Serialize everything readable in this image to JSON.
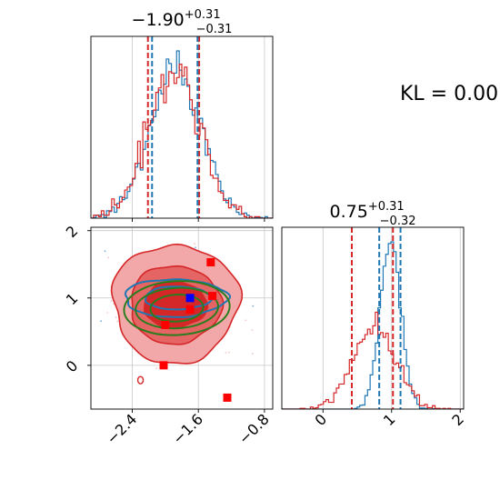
{
  "kl_text": "KL = 0.00",
  "colors": {
    "red": "#d62728",
    "blue": "#1f77b4",
    "green": "#2a7d1e",
    "marker_red": "#ff0000",
    "marker_blue": "#0000ff",
    "grid": "#c8c8c8"
  },
  "chart_data": [
    {
      "panel": "top-left",
      "type": "histogram",
      "title_main": "−1.90",
      "title_sup": "+0.31",
      "title_sub": "−0.31",
      "xlim": [
        -2.9,
        -0.7
      ],
      "xgrid": [
        -2.4,
        -1.6,
        -0.8
      ],
      "quantiles": {
        "red": [
          -2.21,
          -1.59
        ],
        "blue": [
          -2.16,
          -1.61
        ]
      }
    },
    {
      "panel": "bottom-right",
      "type": "histogram",
      "title_main": "0.75",
      "title_sup": "+0.31",
      "title_sub": "−0.32",
      "xlim": [
        -0.6,
        2.05
      ],
      "xticks": [
        "0",
        "1",
        "2"
      ],
      "xtick_values": [
        0,
        1,
        2
      ],
      "quantiles": {
        "red": [
          0.42,
          1.02
        ],
        "blue": [
          0.82,
          1.13
        ]
      }
    },
    {
      "panel": "bottom-left",
      "type": "contour",
      "xlim": [
        -2.9,
        -0.7
      ],
      "ylim": [
        -0.65,
        2.05
      ],
      "xticks": [
        "−2.4",
        "−1.6",
        "−0.8"
      ],
      "xtick_values": [
        -2.4,
        -1.6,
        -0.8
      ],
      "yticks": [
        "0",
        "1",
        "2"
      ],
      "ytick_values": [
        0,
        1,
        2
      ],
      "red_markers": [
        [
          -1.45,
          1.53
        ],
        [
          -1.43,
          1.03
        ],
        [
          -1.7,
          0.83
        ],
        [
          -2.0,
          0.6
        ],
        [
          -2.02,
          0.0
        ],
        [
          -1.25,
          -0.48
        ]
      ],
      "blue_marker": [
        -1.7,
        1.0
      ]
    }
  ]
}
